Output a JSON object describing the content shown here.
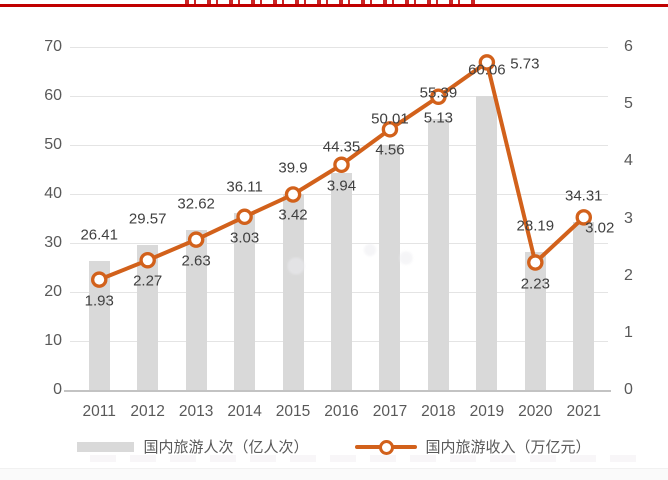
{
  "page": {
    "top_rule_color": "#C00000",
    "background": "#FFFFFF"
  },
  "chart_data": {
    "type": "bar",
    "subtype": "combo-bar-line",
    "categories": [
      "2011",
      "2012",
      "2013",
      "2014",
      "2015",
      "2016",
      "2017",
      "2018",
      "2019",
      "2020",
      "2021"
    ],
    "series": [
      {
        "name": "国内旅游人次（亿人次）",
        "type": "bar",
        "axis": "left",
        "color": "#D9D9D9",
        "values": [
          26.41,
          29.57,
          32.62,
          36.11,
          39.9,
          44.35,
          50.01,
          55.39,
          60.06,
          28.19,
          34.31
        ],
        "labels": [
          "26.41",
          "29.57",
          "32.62",
          "36.11",
          "39.9",
          "44.35",
          "50.01",
          "55.39",
          "60.06",
          "28.19",
          "34.31"
        ]
      },
      {
        "name": "国内旅游收入（万亿元）",
        "type": "line",
        "axis": "right",
        "color": "#D2611B",
        "marker": "open-circle",
        "values": [
          1.93,
          2.27,
          2.63,
          3.03,
          3.42,
          3.94,
          4.56,
          5.13,
          5.73,
          2.23,
          3.02
        ],
        "labels": [
          "1.93",
          "2.27",
          "2.63",
          "3.03",
          "3.42",
          "3.94",
          "4.56",
          "5.13",
          "5.73",
          "2.23",
          "3.02"
        ]
      }
    ],
    "left_axis": {
      "min": 0,
      "max": 70,
      "ticks": [
        0,
        10,
        20,
        30,
        40,
        50,
        60,
        70
      ]
    },
    "right_axis": {
      "min": 0,
      "max": 6,
      "ticks": [
        0,
        1,
        2,
        3,
        4,
        5,
        6
      ]
    },
    "grid": true,
    "legend_position": "bottom",
    "title": ""
  },
  "legend": {
    "bar_label": "国内旅游人次（亿人次）",
    "line_label": "国内旅游收入（万亿元）"
  }
}
